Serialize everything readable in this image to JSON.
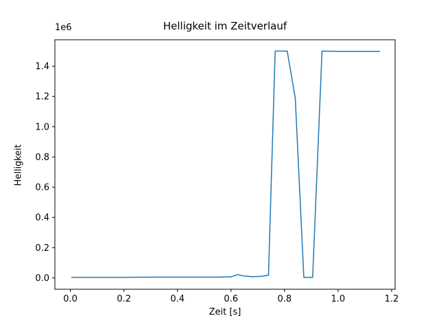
{
  "chart_data": {
    "type": "line",
    "title": "Helligkeit im Zeitverlauf",
    "xlabel": "Zeit [s]",
    "ylabel": "Helligkeit",
    "offset_text": "1e6",
    "line_color": "#1f77b4",
    "axes_color": "#000000",
    "background_color": "#ffffff",
    "xlim": [
      -0.058,
      1.213
    ],
    "ylim": [
      -75000,
      1575000
    ],
    "xticks": [
      0.0,
      0.2,
      0.4,
      0.6,
      0.8,
      1.0,
      1.2
    ],
    "yticks": [
      0,
      200000,
      400000,
      600000,
      800000,
      1000000,
      1200000,
      1400000
    ],
    "grid": false,
    "legend": "none",
    "points": [
      [
        0.005,
        4000
      ],
      [
        0.1,
        4000
      ],
      [
        0.2,
        4000
      ],
      [
        0.3,
        5000
      ],
      [
        0.4,
        5000
      ],
      [
        0.5,
        5000
      ],
      [
        0.55,
        5000
      ],
      [
        0.6,
        7000
      ],
      [
        0.625,
        22000
      ],
      [
        0.65,
        12000
      ],
      [
        0.68,
        8000
      ],
      [
        0.71,
        10000
      ],
      [
        0.74,
        18000
      ],
      [
        0.765,
        1500000
      ],
      [
        0.81,
        1500000
      ],
      [
        0.84,
        1190000
      ],
      [
        0.872,
        4000
      ],
      [
        0.905,
        4000
      ],
      [
        0.94,
        1500000
      ],
      [
        1.0,
        1498000
      ],
      [
        1.155,
        1498000
      ]
    ]
  }
}
